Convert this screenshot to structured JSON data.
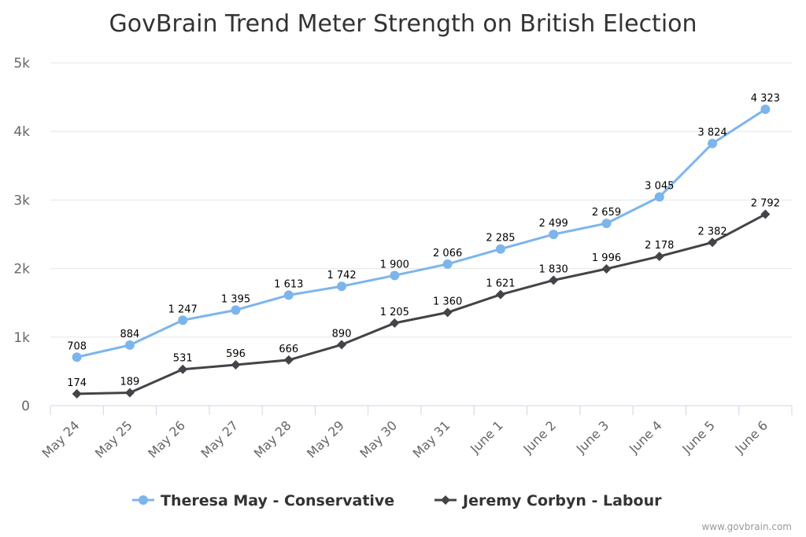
{
  "chart_data": {
    "type": "line",
    "title": "GovBrain Trend Meter Strength on British Election",
    "categories": [
      "May 24",
      "May 25",
      "May 26",
      "May 27",
      "May 28",
      "May 29",
      "May 30",
      "May 31",
      "June 1",
      "June 2",
      "June 3",
      "June 4",
      "June 5",
      "June 6"
    ],
    "y_ticks": [
      {
        "value": 0,
        "label": "0"
      },
      {
        "value": 1000,
        "label": "1k"
      },
      {
        "value": 2000,
        "label": "2k"
      },
      {
        "value": 3000,
        "label": "3k"
      },
      {
        "value": 4000,
        "label": "4k"
      },
      {
        "value": 5000,
        "label": "5k"
      }
    ],
    "ylim": [
      0,
      5000
    ],
    "grid": true,
    "legend_position": "bottom-center",
    "series": [
      {
        "name": "Theresa May - Conservative",
        "color": "#7cb5ec",
        "marker": "circle",
        "values": [
          708,
          884,
          1247,
          1395,
          1613,
          1742,
          1900,
          2066,
          2285,
          2499,
          2659,
          3045,
          3824,
          4323
        ],
        "labels": [
          "708",
          "884",
          "1 247",
          "1 395",
          "1 613",
          "1 742",
          "1 900",
          "2 066",
          "2 285",
          "2 499",
          "2 659",
          "3 045",
          "3 824",
          "4 323"
        ]
      },
      {
        "name": "Jeremy Corbyn - Labour",
        "color": "#434348",
        "marker": "diamond",
        "values": [
          174,
          189,
          531,
          596,
          666,
          890,
          1205,
          1360,
          1621,
          1830,
          1996,
          2178,
          2382,
          2792
        ],
        "labels": [
          "174",
          "189",
          "531",
          "596",
          "666",
          "890",
          "1 205",
          "1 360",
          "1 621",
          "1 830",
          "1 996",
          "2 178",
          "2 382",
          "2 792"
        ]
      }
    ]
  },
  "credit": "www.govbrain.com"
}
